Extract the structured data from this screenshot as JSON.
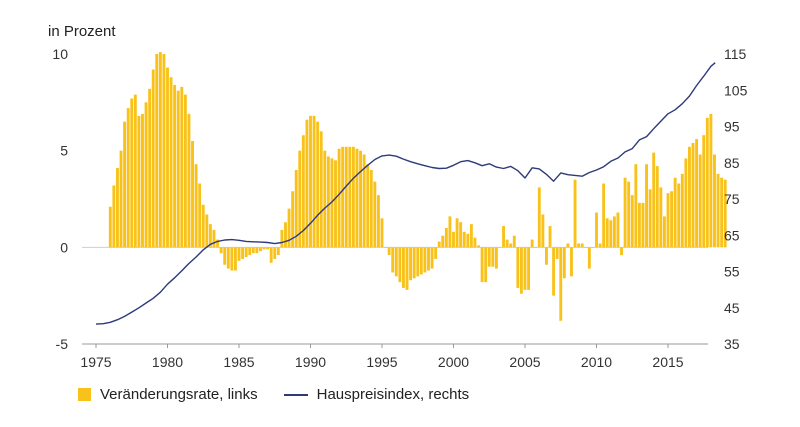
{
  "chart_data": {
    "type": "bar+line",
    "unit_label": "in Prozent",
    "colors": {
      "bar": "#F8C21A",
      "line": "#2E3A7A",
      "axis": "#999999"
    },
    "x_ticks": [
      "1975",
      "1980",
      "1985",
      "1990",
      "1995",
      "2000",
      "2005",
      "2010",
      "2015"
    ],
    "x_range": [
      1975,
      2018.5
    ],
    "y_left": {
      "ticks": [
        "10",
        "5",
        "0",
        "-5"
      ],
      "range": [
        -5,
        10
      ]
    },
    "y_right": {
      "ticks": [
        "115",
        "105",
        "95",
        "85",
        "75",
        "65",
        "55",
        "45",
        "35"
      ],
      "range": [
        35,
        115
      ]
    },
    "legend": {
      "bar_label": "Veränderungsrate, links",
      "line_label": "Hauspreisindex, rechts",
      "position": "bottom"
    },
    "series_bar": {
      "name": "Veränderungsrate, links",
      "axis": "left",
      "start_year": 1976,
      "freq": "quarterly",
      "values": [
        2.1,
        3.2,
        4.1,
        5.0,
        6.5,
        7.2,
        7.7,
        7.9,
        6.8,
        6.9,
        7.5,
        8.2,
        9.2,
        10.0,
        10.1,
        10.0,
        9.3,
        8.8,
        8.4,
        8.1,
        8.3,
        7.9,
        6.9,
        5.5,
        4.3,
        3.3,
        2.2,
        1.7,
        1.2,
        0.9,
        0.4,
        -0.3,
        -0.9,
        -1.1,
        -1.2,
        -1.2,
        -0.7,
        -0.6,
        -0.5,
        -0.4,
        -0.3,
        -0.3,
        -0.2,
        -0.1,
        -0.1,
        -0.8,
        -0.6,
        -0.4,
        0.9,
        1.3,
        2.0,
        2.9,
        4.0,
        5.0,
        5.8,
        6.6,
        6.8,
        6.8,
        6.5,
        6.0,
        5.0,
        4.7,
        4.6,
        4.5,
        5.1,
        5.2,
        5.2,
        5.2,
        5.2,
        5.1,
        5.0,
        4.8,
        4.3,
        4.0,
        3.4,
        2.7,
        1.5,
        0.0,
        -0.4,
        -1.3,
        -1.5,
        -1.8,
        -2.1,
        -2.2,
        -1.7,
        -1.6,
        -1.5,
        -1.4,
        -1.3,
        -1.2,
        -1.1,
        -0.6,
        0.3,
        0.6,
        1.0,
        1.6,
        0.8,
        1.5,
        1.3,
        0.8,
        0.7,
        1.2,
        0.5,
        0.1,
        -1.8,
        -1.8,
        -1.0,
        -1.0,
        -1.1,
        0.0,
        1.1,
        0.4,
        0.2,
        0.6,
        -2.1,
        -2.4,
        -2.2,
        -2.2,
        0.4,
        0.0,
        3.1,
        1.7,
        -0.9,
        1.1,
        -2.5,
        -0.6,
        -3.8,
        -1.6,
        0.2,
        -1.5,
        3.5,
        0.2,
        0.2,
        0.0,
        -1.1,
        0.0,
        1.8,
        0.2,
        3.3,
        1.5,
        1.4,
        1.6,
        1.8,
        -0.4,
        3.6,
        3.4,
        2.7,
        4.3,
        2.3,
        2.3,
        4.3,
        3.0,
        4.9,
        4.2,
        3.1,
        1.6,
        2.8,
        2.9,
        3.6,
        3.3,
        3.8,
        4.6,
        5.2,
        5.4,
        5.6,
        4.8,
        5.8,
        6.7,
        6.9,
        4.8,
        3.8,
        3.6,
        3.5
      ]
    },
    "series_line": {
      "name": "Hauspreisindex, rechts",
      "axis": "right",
      "points": [
        [
          1975.0,
          40.5
        ],
        [
          1975.5,
          40.6
        ],
        [
          1976.0,
          41.0
        ],
        [
          1976.5,
          41.7
        ],
        [
          1977.0,
          42.6
        ],
        [
          1977.5,
          43.8
        ],
        [
          1978.0,
          45.0
        ],
        [
          1978.5,
          46.3
        ],
        [
          1979.0,
          47.6
        ],
        [
          1979.5,
          49.3
        ],
        [
          1980.0,
          51.5
        ],
        [
          1980.5,
          53.3
        ],
        [
          1981.0,
          55.2
        ],
        [
          1981.5,
          57.2
        ],
        [
          1982.0,
          59.0
        ],
        [
          1982.5,
          61.0
        ],
        [
          1983.0,
          62.5
        ],
        [
          1983.5,
          63.3
        ],
        [
          1984.0,
          63.7
        ],
        [
          1984.5,
          63.8
        ],
        [
          1985.0,
          63.6
        ],
        [
          1985.5,
          63.3
        ],
        [
          1986.0,
          63.2
        ],
        [
          1986.5,
          63.1
        ],
        [
          1987.0,
          63.0
        ],
        [
          1987.5,
          62.7
        ],
        [
          1988.0,
          63.0
        ],
        [
          1988.5,
          63.6
        ],
        [
          1989.0,
          64.7
        ],
        [
          1989.5,
          66.3
        ],
        [
          1990.0,
          68.3
        ],
        [
          1990.5,
          70.5
        ],
        [
          1991.0,
          72.5
        ],
        [
          1991.5,
          74.2
        ],
        [
          1992.0,
          76.3
        ],
        [
          1992.5,
          78.6
        ],
        [
          1993.0,
          80.7
        ],
        [
          1993.5,
          82.6
        ],
        [
          1994.0,
          84.3
        ],
        [
          1994.5,
          85.9
        ],
        [
          1995.0,
          86.9
        ],
        [
          1995.5,
          87.1
        ],
        [
          1996.0,
          86.8
        ],
        [
          1996.5,
          86.0
        ],
        [
          1997.0,
          85.3
        ],
        [
          1997.5,
          84.7
        ],
        [
          1998.0,
          84.2
        ],
        [
          1998.5,
          83.7
        ],
        [
          1999.0,
          83.4
        ],
        [
          1999.5,
          83.5
        ],
        [
          2000.0,
          84.3
        ],
        [
          2000.5,
          85.3
        ],
        [
          2001.0,
          85.6
        ],
        [
          2001.5,
          85.0
        ],
        [
          2002.0,
          84.2
        ],
        [
          2002.5,
          84.7
        ],
        [
          2003.0,
          83.8
        ],
        [
          2003.5,
          83.4
        ],
        [
          2004.0,
          84.0
        ],
        [
          2004.5,
          82.8
        ],
        [
          2005.0,
          80.8
        ],
        [
          2005.5,
          83.6
        ],
        [
          2006.0,
          83.3
        ],
        [
          2006.5,
          81.8
        ],
        [
          2007.0,
          79.9
        ],
        [
          2007.5,
          82.2
        ],
        [
          2008.0,
          81.7
        ],
        [
          2008.5,
          81.5
        ],
        [
          2009.0,
          81.3
        ],
        [
          2009.5,
          82.3
        ],
        [
          2010.0,
          83.0
        ],
        [
          2010.5,
          83.9
        ],
        [
          2011.0,
          85.4
        ],
        [
          2011.5,
          86.3
        ],
        [
          2012.0,
          88.0
        ],
        [
          2012.5,
          88.9
        ],
        [
          2013.0,
          91.3
        ],
        [
          2013.5,
          92.2
        ],
        [
          2014.0,
          94.4
        ],
        [
          2014.5,
          96.5
        ],
        [
          2015.0,
          98.5
        ],
        [
          2015.5,
          99.6
        ],
        [
          2016.0,
          101.3
        ],
        [
          2016.5,
          103.4
        ],
        [
          2017.0,
          106.3
        ],
        [
          2017.5,
          108.9
        ],
        [
          2018.0,
          111.6
        ],
        [
          2018.3,
          112.6
        ]
      ]
    }
  }
}
